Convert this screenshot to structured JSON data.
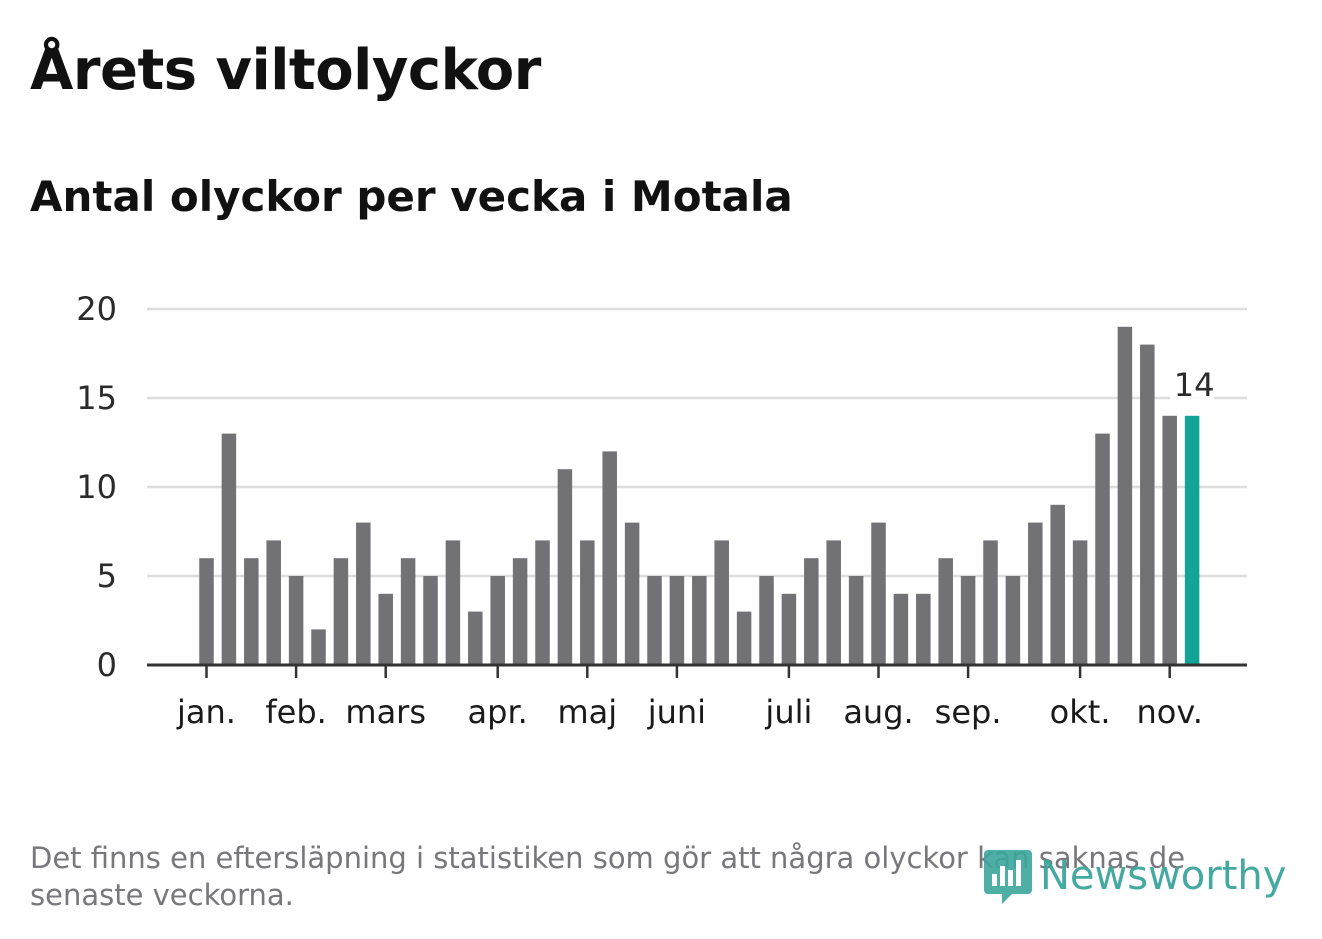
{
  "title": "Årets viltolyckor",
  "subtitle": "Antal olyckor per vecka i Motala",
  "footnote": "Det finns en eftersläpning i statistiken som gör att några olyckor kan saknas de senaste veckorna.",
  "logo": {
    "text": "Newsworthy",
    "icon": "bar-chart-icon"
  },
  "colors": {
    "bar": "#727176",
    "highlight": "#13a497",
    "grid": "#dddddd",
    "axis": "#333333"
  },
  "chart_data": {
    "type": "bar",
    "title": "Antal olyckor per vecka i Motala",
    "xlabel": "",
    "ylabel": "",
    "ylim": [
      0,
      20
    ],
    "yticks": [
      0,
      5,
      10,
      15,
      20
    ],
    "values": [
      6,
      13,
      6,
      7,
      5,
      2,
      6,
      8,
      4,
      6,
      5,
      7,
      3,
      5,
      6,
      7,
      11,
      7,
      12,
      8,
      5,
      5,
      5,
      7,
      3,
      5,
      4,
      6,
      7,
      5,
      8,
      4,
      4,
      6,
      5,
      7,
      5,
      8,
      9,
      7,
      13,
      19,
      18,
      14,
      14
    ],
    "month_labels": [
      {
        "label": "jan.",
        "week": 0
      },
      {
        "label": "feb.",
        "week": 4
      },
      {
        "label": "mars",
        "week": 8
      },
      {
        "label": "apr.",
        "week": 13
      },
      {
        "label": "maj",
        "week": 17
      },
      {
        "label": "juni",
        "week": 21
      },
      {
        "label": "juli",
        "week": 26
      },
      {
        "label": "aug.",
        "week": 30
      },
      {
        "label": "sep.",
        "week": 34
      },
      {
        "label": "okt.",
        "week": 39
      },
      {
        "label": "nov.",
        "week": 43
      }
    ],
    "highlight_index": 44,
    "highlight_label": "14",
    "grid": true,
    "legend": "none"
  }
}
